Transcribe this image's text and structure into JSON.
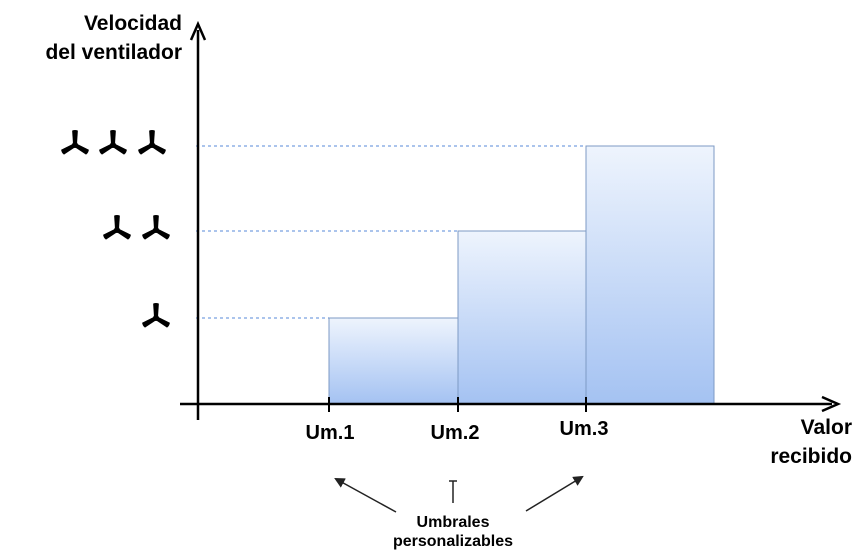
{
  "diagram": {
    "y_axis_label": [
      "Velocidad",
      "del ventilador"
    ],
    "x_axis_label": [
      "Valor",
      "recibido"
    ],
    "thresholds": [
      "Um.1",
      "Um.2",
      "Um.3"
    ],
    "annotation": [
      "Umbrales",
      "personalizables"
    ],
    "levels": [
      {
        "fans": 1,
        "from": "Um.1",
        "to": "Um.2"
      },
      {
        "fans": 2,
        "from": "Um.2",
        "to": "Um.3"
      },
      {
        "fans": 3,
        "from": "Um.3",
        "to": null
      }
    ],
    "colors": {
      "bar_top": "#eef4fd",
      "bar_bottom": "#a4c2f2",
      "bar_stroke": "#7d9ac4",
      "dashed_line": "#8fb0e6",
      "axis": "#000000"
    },
    "icon": "fan-icon"
  }
}
